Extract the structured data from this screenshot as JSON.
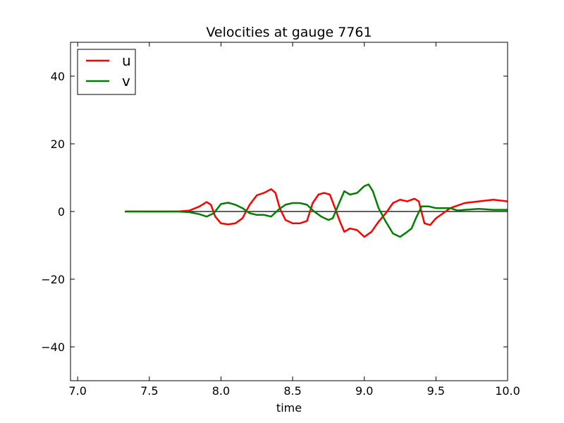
{
  "chart_data": {
    "type": "line",
    "title": "Velocities at gauge 7761",
    "xlabel": "time",
    "ylabel": "",
    "xlim": [
      6.95,
      10.0
    ],
    "ylim": [
      -50,
      50
    ],
    "xticks": [
      7.0,
      7.5,
      8.0,
      8.5,
      9.0,
      9.5,
      10.0
    ],
    "xtick_labels": [
      "7.0",
      "7.5",
      "8.0",
      "8.5",
      "9.0",
      "9.5",
      "10.0"
    ],
    "yticks": [
      -40,
      -20,
      0,
      20,
      40
    ],
    "ytick_labels": [
      "−40",
      "−20",
      "0",
      "20",
      "40"
    ],
    "grid": false,
    "legend_position": "top-left",
    "zero_line": {
      "from_x": 7.33,
      "to_x": 10.0,
      "y": 0,
      "color": "#000000"
    },
    "series": [
      {
        "name": "u",
        "color": "#ff0000",
        "x": [
          7.33,
          7.5,
          7.7,
          7.78,
          7.85,
          7.9,
          7.93,
          7.96,
          8.0,
          8.05,
          8.1,
          8.15,
          8.2,
          8.25,
          8.3,
          8.35,
          8.38,
          8.41,
          8.45,
          8.5,
          8.55,
          8.6,
          8.64,
          8.68,
          8.72,
          8.76,
          8.8,
          8.83,
          8.86,
          8.9,
          8.95,
          9.0,
          9.05,
          9.1,
          9.15,
          9.2,
          9.25,
          9.3,
          9.35,
          9.38,
          9.42,
          9.46,
          9.5,
          9.6,
          9.7,
          9.8,
          9.9,
          10.0
        ],
        "y": [
          0,
          0,
          0,
          0.3,
          1.5,
          2.8,
          2.0,
          -1.5,
          -3.5,
          -3.8,
          -3.5,
          -2.0,
          2.0,
          4.8,
          5.5,
          6.6,
          5.5,
          1.0,
          -2.5,
          -3.5,
          -3.5,
          -2.8,
          2.5,
          5.0,
          5.5,
          5.0,
          0.5,
          -3.0,
          -6.0,
          -5.0,
          -5.5,
          -7.5,
          -6.0,
          -3.0,
          -0.5,
          2.5,
          3.5,
          3.0,
          3.8,
          3.0,
          -3.5,
          -4.0,
          -2.0,
          1.0,
          2.5,
          3.0,
          3.5,
          3.0
        ]
      },
      {
        "name": "v",
        "color": "#008000",
        "x": [
          7.33,
          7.5,
          7.7,
          7.78,
          7.85,
          7.9,
          7.95,
          8.0,
          8.05,
          8.1,
          8.15,
          8.2,
          8.25,
          8.3,
          8.35,
          8.4,
          8.45,
          8.5,
          8.55,
          8.6,
          8.65,
          8.7,
          8.75,
          8.78,
          8.82,
          8.86,
          8.9,
          8.95,
          9.0,
          9.03,
          9.06,
          9.1,
          9.15,
          9.2,
          9.25,
          9.3,
          9.33,
          9.36,
          9.4,
          9.45,
          9.5,
          9.6,
          9.65,
          9.7,
          9.8,
          9.9,
          10.0
        ],
        "y": [
          0,
          0,
          0,
          -0.2,
          -0.8,
          -1.5,
          -0.5,
          2.2,
          2.6,
          2.0,
          1.0,
          -0.5,
          -1.0,
          -1.0,
          -1.5,
          0.5,
          2.0,
          2.5,
          2.5,
          2.0,
          0,
          -1.5,
          -2.5,
          -2.0,
          2.0,
          6.0,
          5.0,
          5.5,
          7.5,
          8.0,
          6.0,
          1.0,
          -3.0,
          -6.5,
          -7.5,
          -6.0,
          -5.0,
          -2.0,
          1.5,
          1.5,
          1.0,
          1.0,
          0.3,
          0.5,
          0.8,
          0.5,
          0.5
        ]
      }
    ]
  }
}
